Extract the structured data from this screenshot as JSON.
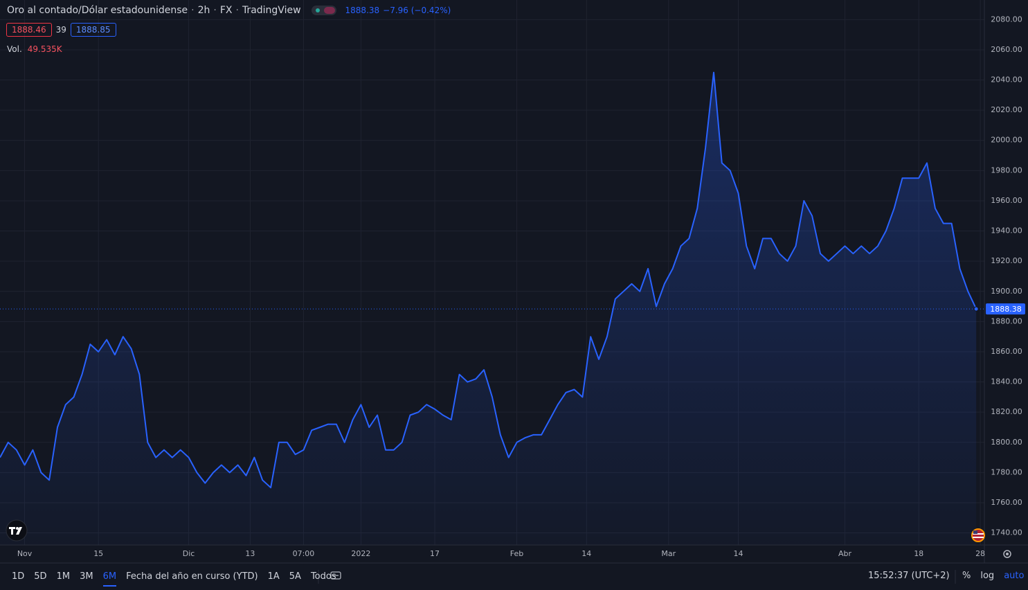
{
  "header": {
    "symbol": "Oro al contado/Dólar estadounidense",
    "separator": "·",
    "interval": "2h",
    "exchange": "FX",
    "source": "TradingView",
    "last": "1888.38",
    "change": "−7.96 (−0.42%)"
  },
  "quote": {
    "bid": "1888.46",
    "spread": "39",
    "ask": "1888.85"
  },
  "volume": {
    "label": "Vol.",
    "value": "49.535K"
  },
  "chart_data": {
    "type": "area",
    "color": "#2962ff",
    "grid": true,
    "x": [
      0,
      1,
      2,
      3,
      4,
      5,
      6,
      7,
      8,
      9,
      10,
      11,
      12,
      13,
      14,
      15,
      16,
      17,
      18,
      19,
      20,
      21,
      22,
      23,
      24,
      25,
      26,
      27,
      28,
      29,
      30,
      31,
      32,
      33,
      34,
      35,
      36,
      37,
      38,
      39,
      40,
      41,
      42,
      43,
      44,
      45,
      46,
      47,
      48,
      49,
      50,
      51,
      52,
      53,
      54,
      55,
      56,
      57,
      58,
      59,
      60,
      61,
      62,
      63,
      64,
      65,
      66,
      67,
      68,
      69,
      70,
      71,
      72,
      73,
      74,
      75,
      76,
      77,
      78,
      79,
      80,
      81,
      82,
      83,
      84,
      85,
      86,
      87,
      88,
      89,
      90,
      91,
      92,
      93,
      94,
      95,
      96,
      97,
      98,
      99,
      100,
      101,
      102,
      103,
      104,
      105,
      106,
      107,
      108,
      109,
      110,
      111,
      112,
      113,
      114,
      115,
      116,
      117,
      118,
      119
    ],
    "values": [
      1790,
      1800,
      1795,
      1785,
      1795,
      1780,
      1775,
      1810,
      1825,
      1830,
      1845,
      1865,
      1860,
      1868,
      1858,
      1870,
      1862,
      1845,
      1800,
      1790,
      1795,
      1790,
      1795,
      1790,
      1780,
      1773,
      1780,
      1785,
      1780,
      1785,
      1778,
      1790,
      1775,
      1770,
      1800,
      1800,
      1792,
      1795,
      1808,
      1810,
      1812,
      1812,
      1800,
      1815,
      1825,
      1810,
      1818,
      1795,
      1795,
      1800,
      1818,
      1820,
      1825,
      1822,
      1818,
      1815,
      1845,
      1840,
      1842,
      1848,
      1830,
      1805,
      1790,
      1800,
      1803,
      1805,
      1805,
      1815,
      1825,
      1833,
      1835,
      1830,
      1870,
      1855,
      1870,
      1895,
      1900,
      1905,
      1900,
      1915,
      1890,
      1905,
      1915,
      1930,
      1935,
      1955,
      1995,
      2045,
      1985,
      1980,
      1965,
      1930,
      1915,
      1935,
      1935,
      1925,
      1920,
      1930,
      1960,
      1950,
      1925,
      1920,
      1925,
      1930,
      1925,
      1930,
      1925,
      1930,
      1940,
      1955,
      1975,
      1975,
      1975,
      1985,
      1955,
      1945,
      1945,
      1915,
      1900,
      1888.38
    ],
    "xlim": [
      0,
      120
    ],
    "ylim": [
      1732,
      2093
    ],
    "yticks": [
      {
        "value": 1740,
        "label": "1740.00"
      },
      {
        "value": 1760,
        "label": "1760.00"
      },
      {
        "value": 1780,
        "label": "1780.00"
      },
      {
        "value": 1800,
        "label": "1800.00"
      },
      {
        "value": 1820,
        "label": "1820.00"
      },
      {
        "value": 1840,
        "label": "1840.00"
      },
      {
        "value": 1860,
        "label": "1860.00"
      },
      {
        "value": 1880,
        "label": "1880.00"
      },
      {
        "value": 1900,
        "label": "1900.00"
      },
      {
        "value": 1920,
        "label": "1920.00"
      },
      {
        "value": 1940,
        "label": "1940.00"
      },
      {
        "value": 1960,
        "label": "1960.00"
      },
      {
        "value": 1980,
        "label": "1980.00"
      },
      {
        "value": 2000,
        "label": "2000.00"
      },
      {
        "value": 2020,
        "label": "2020.00"
      },
      {
        "value": 2040,
        "label": "2040.00"
      },
      {
        "value": 2060,
        "label": "2060.00"
      },
      {
        "value": 2080,
        "label": "2080.00"
      }
    ],
    "xticks": [
      {
        "value": 3,
        "label": "Nov"
      },
      {
        "value": 12,
        "label": "15"
      },
      {
        "value": 23,
        "label": "Dic"
      },
      {
        "value": 30.5,
        "label": "13"
      },
      {
        "value": 37,
        "label": "07:00"
      },
      {
        "value": 44,
        "label": "2022"
      },
      {
        "value": 53,
        "label": "17"
      },
      {
        "value": 63,
        "label": "Feb"
      },
      {
        "value": 71.5,
        "label": "14"
      },
      {
        "value": 81.5,
        "label": "Mar"
      },
      {
        "value": 90,
        "label": "14"
      },
      {
        "value": 103,
        "label": "Abr"
      },
      {
        "value": 112,
        "label": "18"
      },
      {
        "value": 119.5,
        "label": "28"
      }
    ]
  },
  "toolbar": {
    "ranges": [
      "1D",
      "5D",
      "1M",
      "3M",
      "6M",
      "Fecha del año en curso (YTD)",
      "1A",
      "5A",
      "Todos"
    ],
    "selected": "6M",
    "clock": "15:52:37 (UTC+2)",
    "scale_options": [
      "%",
      "log",
      "auto"
    ]
  }
}
